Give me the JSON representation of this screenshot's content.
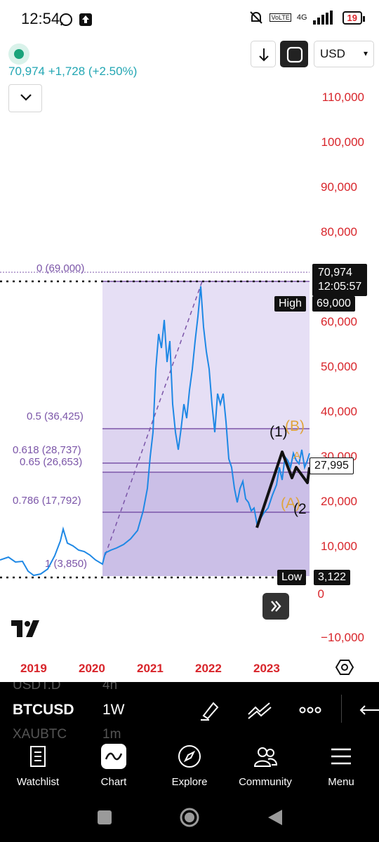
{
  "status_bar": {
    "time": "12:54",
    "network_label_top": "4G",
    "network_label_badge": "VoLTE",
    "battery": "19"
  },
  "chart": {
    "price_line": "70,974 +1,728 (+2.50%)",
    "currency": "USD",
    "y_axis_labels": [
      "110,000",
      "100,000",
      "90,000",
      "80,000",
      "60,000",
      "50,000",
      "40,000",
      "30,000",
      "20,000",
      "10,000",
      "0",
      "−10,000"
    ],
    "x_axis_labels": [
      "2019",
      "2020",
      "2021",
      "2022",
      "2023"
    ],
    "last_price": "70,974",
    "countdown": "12:05:57",
    "high_label": "High",
    "high_value": "69,000",
    "low_label": "Low",
    "low_value": "3,122",
    "crosshair_price": "27,995",
    "fib_levels": [
      {
        "label": "0 (69,000)"
      },
      {
        "label": "0.5 (36,425)"
      },
      {
        "label": "0.618 (28,737)"
      },
      {
        "label": "0.65 (26,653)"
      },
      {
        "label": "0.786 (17,792)"
      },
      {
        "label": "1 (3,850)"
      }
    ],
    "wave_labels": [
      "(1)",
      "(B)",
      "(A)",
      "(2",
      "A"
    ],
    "colors": {
      "axis_text": "#d8242a",
      "fib_text": "#7b55a8",
      "fib_zone": "#ddd4f0",
      "fib_zone_low": "#c9bce6",
      "candles": "#1e88e5",
      "wave": "#e0a43c",
      "price_text": "#22a6b3"
    }
  },
  "toolbar": {
    "symbol_above": "USDT.D",
    "interval_above": "4h",
    "symbol": "BTCUSD",
    "interval": "1W",
    "symbol_below": "XAUBTC",
    "interval_below": "1m"
  },
  "bottom_nav": {
    "items": [
      {
        "label": "Watchlist",
        "icon": "watchlist-icon"
      },
      {
        "label": "Chart",
        "icon": "chart-icon"
      },
      {
        "label": "Explore",
        "icon": "compass-icon"
      },
      {
        "label": "Community",
        "icon": "community-icon"
      },
      {
        "label": "Menu",
        "icon": "menu-icon"
      }
    ]
  }
}
